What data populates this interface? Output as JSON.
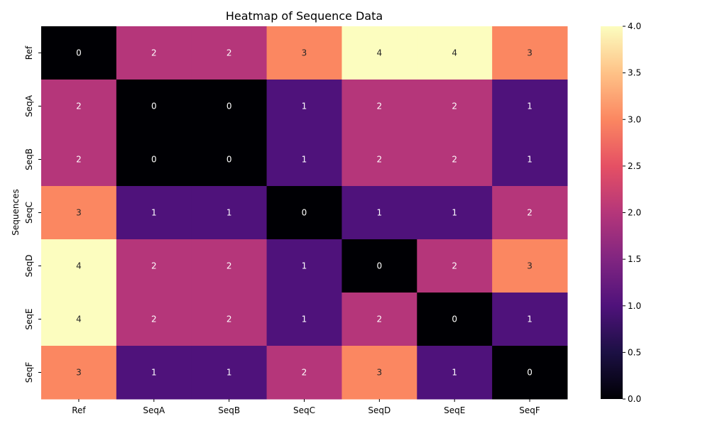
{
  "chart_data": {
    "type": "heatmap",
    "title": "Heatmap of Sequence Data",
    "xlabel": "",
    "ylabel": "Sequences",
    "columns": [
      "Ref",
      "SeqA",
      "SeqB",
      "SeqC",
      "SeqD",
      "SeqE",
      "SeqF"
    ],
    "rows": [
      "Ref",
      "SeqA",
      "SeqB",
      "SeqC",
      "SeqD",
      "SeqE",
      "SeqF"
    ],
    "values": [
      [
        0,
        2,
        2,
        3,
        4,
        4,
        3
      ],
      [
        2,
        0,
        0,
        1,
        2,
        2,
        1
      ],
      [
        2,
        0,
        0,
        1,
        2,
        2,
        1
      ],
      [
        3,
        1,
        1,
        0,
        1,
        1,
        2
      ],
      [
        4,
        2,
        2,
        1,
        0,
        2,
        3
      ],
      [
        4,
        2,
        2,
        1,
        2,
        0,
        1
      ],
      [
        3,
        1,
        1,
        2,
        3,
        1,
        0
      ]
    ],
    "colormap": "magma",
    "vmin": 0,
    "vmax": 4,
    "colorbar_ticks": [
      "0.0",
      "0.5",
      "1.0",
      "1.5",
      "2.0",
      "2.5",
      "3.0",
      "3.5",
      "4.0"
    ],
    "annotations": true
  }
}
